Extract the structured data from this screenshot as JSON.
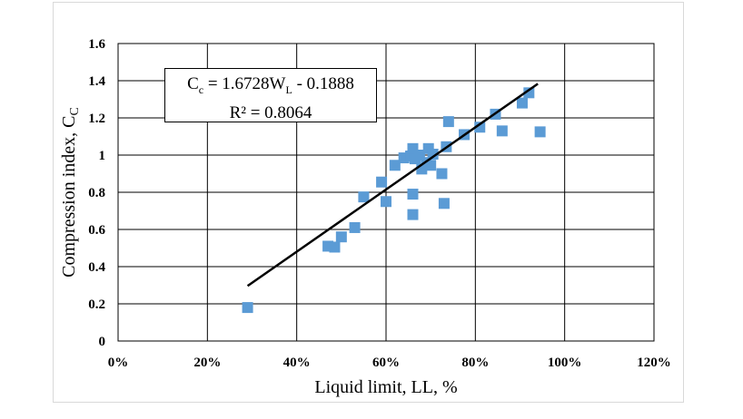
{
  "chart_data": {
    "type": "scatter",
    "title": "",
    "xlabel": "Liquid limit, LL, %",
    "ylabel_main": "Compression index, C",
    "ylabel_sub": "C",
    "xlim": [
      0,
      1.2
    ],
    "ylim": [
      0,
      1.6
    ],
    "x_ticks": [
      0,
      0.2,
      0.4,
      0.6,
      0.8,
      1.0,
      1.2
    ],
    "x_tick_labels": [
      "0%",
      "20%",
      "40%",
      "60%",
      "80%",
      "100%",
      "120%"
    ],
    "y_ticks": [
      0,
      0.2,
      0.4,
      0.6,
      0.8,
      1.0,
      1.2,
      1.4,
      1.6
    ],
    "y_tick_labels": [
      "0",
      "0.2",
      "0.4",
      "0.6",
      "0.8",
      "1",
      "1.2",
      "1.4",
      "1.6"
    ],
    "grid": true,
    "marker_color": "#5B9BD5",
    "trendline_color": "#000000",
    "points": [
      {
        "x": 0.29,
        "y": 0.18
      },
      {
        "x": 0.47,
        "y": 0.51
      },
      {
        "x": 0.485,
        "y": 0.505
      },
      {
        "x": 0.5,
        "y": 0.56
      },
      {
        "x": 0.53,
        "y": 0.61
      },
      {
        "x": 0.55,
        "y": 0.775
      },
      {
        "x": 0.59,
        "y": 0.855
      },
      {
        "x": 0.6,
        "y": 0.75
      },
      {
        "x": 0.62,
        "y": 0.945
      },
      {
        "x": 0.64,
        "y": 0.985
      },
      {
        "x": 0.655,
        "y": 0.995
      },
      {
        "x": 0.66,
        "y": 1.035
      },
      {
        "x": 0.665,
        "y": 0.98
      },
      {
        "x": 0.675,
        "y": 1.0
      },
      {
        "x": 0.68,
        "y": 0.925
      },
      {
        "x": 0.69,
        "y": 0.96
      },
      {
        "x": 0.695,
        "y": 1.035
      },
      {
        "x": 0.7,
        "y": 0.945
      },
      {
        "x": 0.705,
        "y": 1.005
      },
      {
        "x": 0.66,
        "y": 0.79
      },
      {
        "x": 0.66,
        "y": 0.68
      },
      {
        "x": 0.725,
        "y": 0.9
      },
      {
        "x": 0.73,
        "y": 0.74
      },
      {
        "x": 0.735,
        "y": 1.045
      },
      {
        "x": 0.74,
        "y": 1.18
      },
      {
        "x": 0.775,
        "y": 1.11
      },
      {
        "x": 0.81,
        "y": 1.15
      },
      {
        "x": 0.845,
        "y": 1.22
      },
      {
        "x": 0.86,
        "y": 1.13
      },
      {
        "x": 0.905,
        "y": 1.28
      },
      {
        "x": 0.92,
        "y": 1.335
      },
      {
        "x": 0.945,
        "y": 1.125
      }
    ],
    "trendline": {
      "x_start": 0.29,
      "x_end": 0.94,
      "slope": 1.6728,
      "intercept": -0.1888
    },
    "annotation": {
      "line1_prefix": "C",
      "line1_sub1": "c",
      "line1_mid": " = 1.6728W",
      "line1_sub2": "L",
      "line1_suffix": " - 0.1888",
      "line2": "R² = 0.8064"
    }
  }
}
